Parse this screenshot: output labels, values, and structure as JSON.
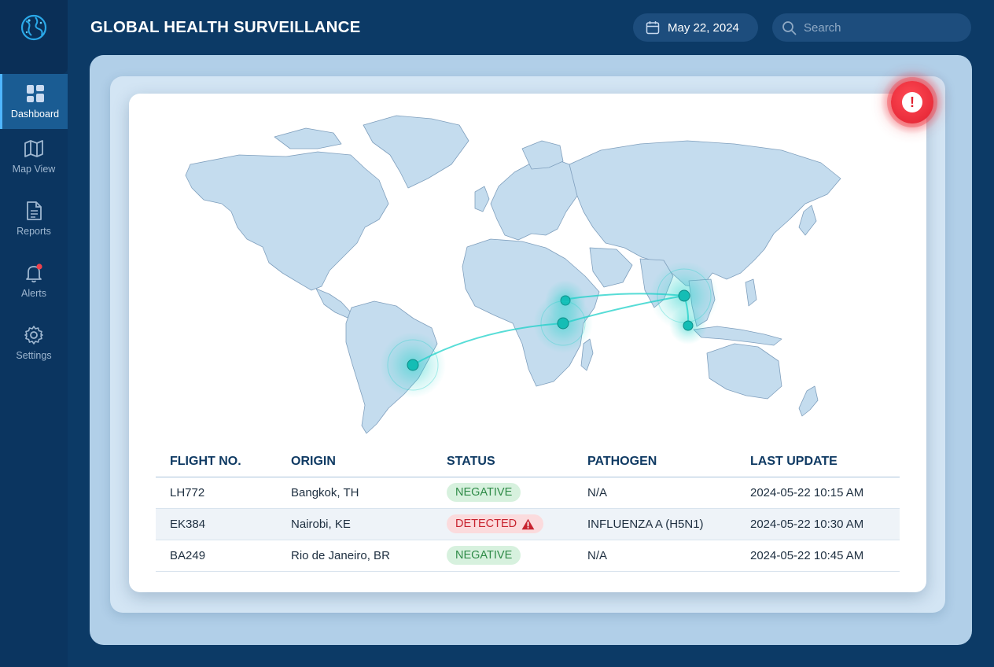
{
  "app": {
    "title": "GLOBAL HEALTH SURVEILLANCE"
  },
  "header": {
    "date": "May 22, 2024",
    "search_placeholder": "Search"
  },
  "sidebar": {
    "items": [
      {
        "label": "Dashboard",
        "icon": "dashboard-icon",
        "active": true
      },
      {
        "label": "Map View",
        "icon": "map-icon",
        "active": false
      },
      {
        "label": "Reports",
        "icon": "document-icon",
        "active": false
      },
      {
        "label": "Alerts",
        "icon": "bell-icon",
        "active": false,
        "notification": true
      },
      {
        "label": "Settings",
        "icon": "gear-icon",
        "active": false
      }
    ]
  },
  "alert": {
    "symbol": "!",
    "color": "#e0202f"
  },
  "table": {
    "headers": [
      "FLIGHT NO.",
      "ORIGIN",
      "STATUS",
      "PATHOGEN",
      "LAST UPDATE"
    ],
    "rows": [
      {
        "flight": "LH772",
        "origin": "Bangkok, TH",
        "status": "NEGATIVE",
        "pathogen": "N/A",
        "updated": "2024-05-22 10:15 AM"
      },
      {
        "flight": "EK384",
        "origin": "Nairobi, KE",
        "status": "DETECTED",
        "pathogen": "INFLUENZA A (H5N1)",
        "updated": "2024-05-22 10:30 AM"
      },
      {
        "flight": "BA249",
        "origin": "Rio de Janeiro, BR",
        "status": "NEGATIVE",
        "pathogen": "N/A",
        "updated": "2024-05-22 10:45 AM"
      }
    ]
  },
  "colors": {
    "accent": "#1fd1c9",
    "negative": "#2e8b47",
    "detected": "#c8232f",
    "navy": "#0c3a66"
  }
}
